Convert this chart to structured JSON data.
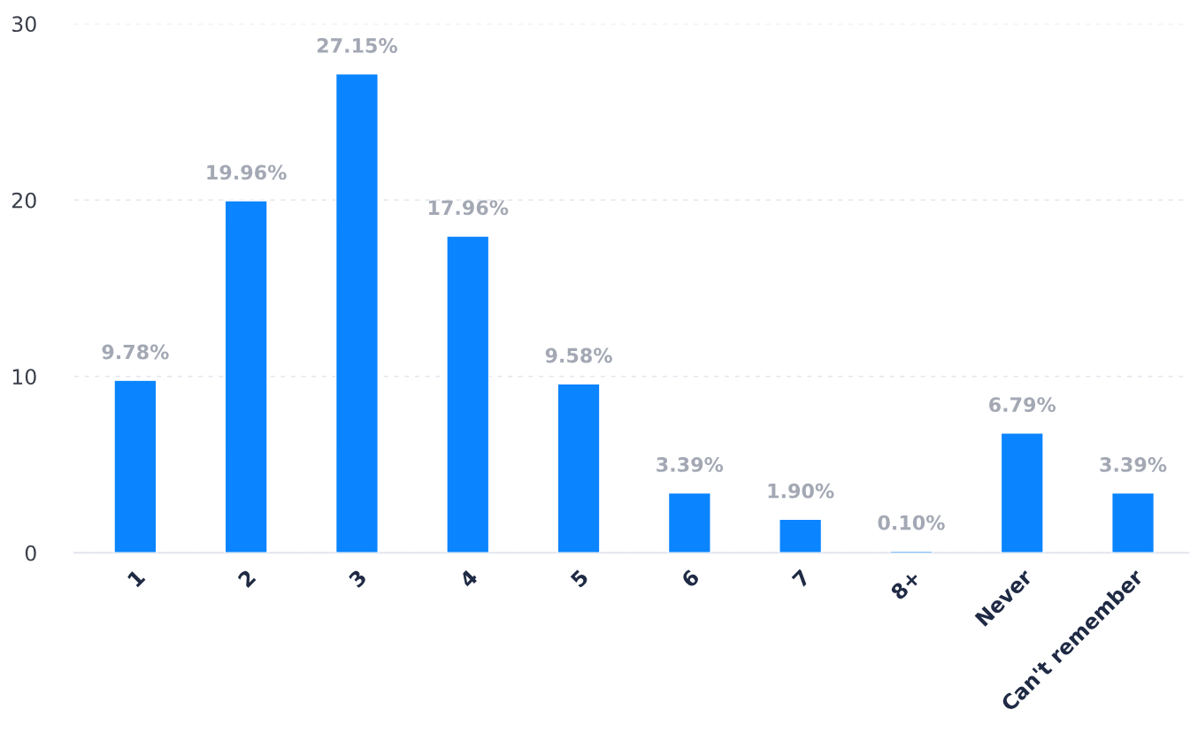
{
  "chart_data": {
    "type": "bar",
    "categories": [
      "1",
      "2",
      "3",
      "4",
      "5",
      "6",
      "7",
      "8+",
      "Never",
      "Can't remember"
    ],
    "values": [
      9.78,
      19.96,
      27.15,
      17.96,
      9.58,
      3.39,
      1.9,
      0.1,
      6.79,
      3.39
    ],
    "value_labels": [
      "9.78%",
      "19.96%",
      "27.15%",
      "17.96%",
      "9.58%",
      "3.39%",
      "1.90%",
      "0.10%",
      "6.79%",
      "3.39%"
    ],
    "color": "#0a84ff",
    "ylim": [
      0,
      30
    ],
    "yticks": [
      0,
      10,
      20,
      30
    ],
    "grid": "y"
  }
}
